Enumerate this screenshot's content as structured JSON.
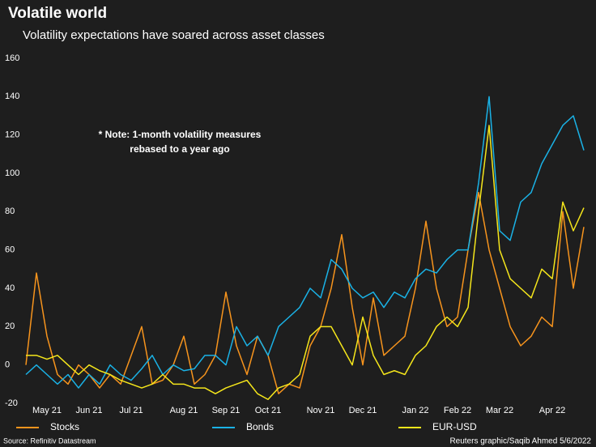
{
  "chart_data": {
    "type": "line",
    "title": "Volatile world",
    "subtitle": "Volatility expectations have soared across asset classes",
    "annotation": [
      "* Note: 1-month volatility measures",
      "rebased to a year ago"
    ],
    "source": "Source: Refinitiv Datastream",
    "credit": "Reuters graphic/Saqib Ahmed 5/6/2022",
    "categories": [
      null,
      null,
      "May 21",
      null,
      null,
      null,
      "Jun 21",
      null,
      null,
      null,
      "Jul 21",
      null,
      null,
      null,
      null,
      "Aug 21",
      null,
      null,
      null,
      "Sep 21",
      null,
      null,
      null,
      "Oct 21",
      null,
      null,
      null,
      null,
      "Nov 21",
      null,
      null,
      null,
      "Dec 21",
      null,
      null,
      null,
      null,
      "Jan 22",
      null,
      null,
      null,
      "Feb 22",
      null,
      null,
      null,
      "Mar 22",
      null,
      null,
      null,
      null,
      "Apr 22",
      null,
      null,
      null
    ],
    "series": [
      {
        "name": "Stocks",
        "color": "#f7941d",
        "values": [
          0,
          48,
          15,
          -5,
          -10,
          0,
          -5,
          -12,
          -5,
          -10,
          5,
          20,
          -10,
          -8,
          0,
          15,
          -10,
          -5,
          5,
          38,
          10,
          -5,
          15,
          5,
          -15,
          -10,
          -12,
          10,
          20,
          40,
          68,
          30,
          0,
          35,
          5,
          10,
          15,
          40,
          75,
          40,
          20,
          25,
          60,
          90,
          60,
          40,
          20,
          10,
          15,
          25,
          20,
          80,
          40,
          72
        ]
      },
      {
        "name": "Bonds",
        "color": "#1ab2e6",
        "values": [
          -5,
          0,
          -5,
          -10,
          -5,
          -12,
          -5,
          -10,
          0,
          -5,
          -8,
          -2,
          5,
          -5,
          0,
          -3,
          -2,
          5,
          5,
          0,
          20,
          10,
          15,
          5,
          20,
          25,
          30,
          40,
          35,
          55,
          50,
          40,
          35,
          38,
          30,
          38,
          35,
          45,
          50,
          48,
          55,
          60,
          60,
          95,
          140,
          70,
          65,
          85,
          90,
          105,
          115,
          125,
          130,
          112
        ]
      },
      {
        "name": "EUR-USD",
        "color": "#f5e61b",
        "values": [
          5,
          5,
          3,
          5,
          0,
          -5,
          0,
          -3,
          -5,
          -8,
          -10,
          -12,
          -10,
          -5,
          -10,
          -10,
          -12,
          -12,
          -15,
          -12,
          -10,
          -8,
          -15,
          -18,
          -12,
          -10,
          -5,
          15,
          20,
          20,
          10,
          0,
          25,
          5,
          -5,
          -3,
          -5,
          5,
          10,
          20,
          25,
          20,
          30,
          80,
          125,
          60,
          45,
          40,
          35,
          50,
          45,
          85,
          70,
          82
        ]
      }
    ],
    "ylim": [
      -20,
      160
    ],
    "yticks": [
      -20,
      0,
      20,
      40,
      60,
      80,
      100,
      120,
      140,
      160
    ],
    "grid": false
  }
}
